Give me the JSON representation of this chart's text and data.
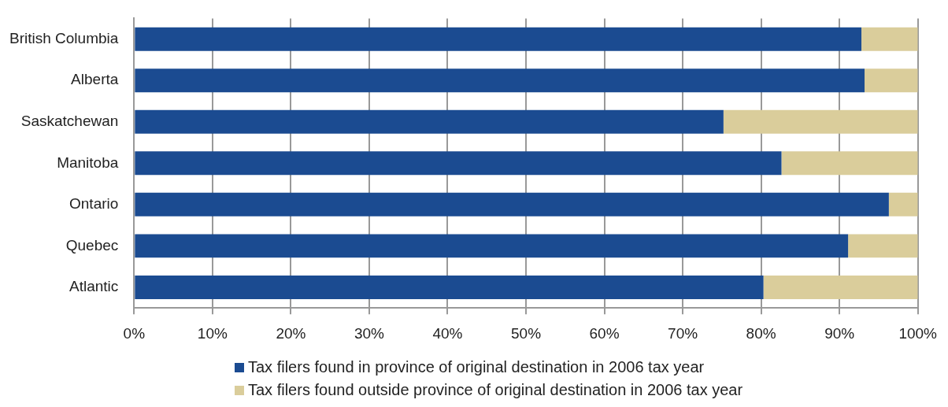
{
  "chart_data": {
    "type": "bar",
    "orientation": "horizontal",
    "stacked": true,
    "categories": [
      "British Columbia",
      "Alberta",
      "Saskatchewan",
      "Manitoba",
      "Ontario",
      "Quebec",
      "Atlantic"
    ],
    "series": [
      {
        "name": "Tax filers found in province of original destination in 2006 tax year",
        "color": "#1b4b91",
        "values": [
          92.8,
          93.2,
          75.2,
          82.6,
          96.3,
          91.1,
          80.3
        ]
      },
      {
        "name": "Tax filers found outside province of original destination in 2006 tax year",
        "color": "#dacd9b",
        "values": [
          7.2,
          6.8,
          24.8,
          17.4,
          3.7,
          8.9,
          19.7
        ]
      }
    ],
    "xlim": [
      0,
      100
    ],
    "xticks": [
      {
        "value": 0,
        "label": "0%"
      },
      {
        "value": 10,
        "label": "10%"
      },
      {
        "value": 20,
        "label": "20%"
      },
      {
        "value": 30,
        "label": "30%"
      },
      {
        "value": 40,
        "label": "40%"
      },
      {
        "value": 50,
        "label": "50%"
      },
      {
        "value": 60,
        "label": "60%"
      },
      {
        "value": 70,
        "label": "70%"
      },
      {
        "value": 80,
        "label": "80%"
      },
      {
        "value": 90,
        "label": "90%"
      },
      {
        "value": 100,
        "label": "100%"
      }
    ],
    "grid": "x",
    "legend": "bottom"
  }
}
